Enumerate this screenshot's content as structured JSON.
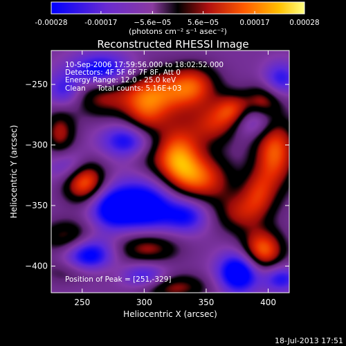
{
  "chart_data": {
    "type": "heatmap",
    "title": "Reconstructed RHESSI Image",
    "xlabel": "Heliocentric X (arcsec)",
    "ylabel": "Heliocentric Y (arcsec)",
    "xlim": [
      225,
      417
    ],
    "ylim": [
      -422,
      -222
    ],
    "x_ticks": [
      250,
      300,
      350,
      400
    ],
    "y_ticks": [
      -250,
      -300,
      -350,
      -400
    ],
    "colorbar": {
      "range": [
        -0.00028,
        0.00028
      ],
      "tick_values": [
        -0.00028,
        -0.00017,
        -5.6e-05,
        5.6e-05,
        0.00017,
        0.00028
      ],
      "tick_labels": [
        "-0.00028",
        "-0.00017",
        "−5.6e−05",
        "5.6e−05",
        "0.00017",
        "0.00028"
      ],
      "unit_label": "(photons cm⁻² s⁻¹ asec⁻²)",
      "colors": [
        "#0000ff",
        "#6a2bd0",
        "#8a3aa0",
        "#000000",
        "#b01010",
        "#ff5a00",
        "#ffc000",
        "#ffff80"
      ]
    },
    "annotations": [
      "10-Sep-2006 17:59:56.000 to 18:02:52.000",
      "Detectors: 4F 5F 6F 7F 8F, Att 0",
      "Energy Range: 12.0 - 25.0 keV",
      "Clean     Total counts: 5.16E+03"
    ],
    "peak_label": "Position of Peak = [251,-329]",
    "peak": [
      251,
      -329
    ],
    "sources": [
      {
        "x": 251,
        "y": -329,
        "sx": 12,
        "sy": 12,
        "a": 1.0
      },
      {
        "x": 232,
        "y": -290,
        "sx": 9,
        "sy": 14,
        "a": 0.55
      },
      {
        "x": 310,
        "y": -258,
        "sx": 22,
        "sy": 14,
        "a": 0.75
      },
      {
        "x": 340,
        "y": -250,
        "sx": 14,
        "sy": 12,
        "a": 0.6
      },
      {
        "x": 373,
        "y": -272,
        "sx": 11,
        "sy": 10,
        "a": 0.85
      },
      {
        "x": 326,
        "y": -308,
        "sx": 14,
        "sy": 18,
        "a": 0.9
      },
      {
        "x": 345,
        "y": -328,
        "sx": 18,
        "sy": 14,
        "a": 0.75
      },
      {
        "x": 405,
        "y": -305,
        "sx": 12,
        "sy": 22,
        "a": 0.85
      },
      {
        "x": 395,
        "y": -265,
        "sx": 10,
        "sy": 10,
        "a": 0.55
      },
      {
        "x": 395,
        "y": -387,
        "sx": 12,
        "sy": 12,
        "a": 0.9
      },
      {
        "x": 302,
        "y": -384,
        "sx": 18,
        "sy": 10,
        "a": 0.6
      },
      {
        "x": 240,
        "y": -376,
        "sx": 16,
        "sy": 10,
        "a": 0.55
      },
      {
        "x": 322,
        "y": -417,
        "sx": 20,
        "sy": 8,
        "a": 0.55
      },
      {
        "x": 376,
        "y": -356,
        "sx": 14,
        "sy": 12,
        "a": 0.5
      },
      {
        "x": 250,
        "y": -404,
        "sx": 20,
        "sy": 8,
        "a": 0.45
      },
      {
        "x": 356,
        "y": -283,
        "sx": 14,
        "sy": 12,
        "a": 0.55
      },
      {
        "x": 264,
        "y": -260,
        "sx": 16,
        "sy": 12,
        "a": 0.45
      },
      {
        "x": 392,
        "y": -340,
        "sx": 10,
        "sy": 14,
        "a": 0.5
      },
      {
        "x": 300,
        "y": -286,
        "sx": 12,
        "sy": 20,
        "a": 0.55
      },
      {
        "x": 265,
        "y": -238,
        "sx": 18,
        "sy": 10,
        "a": -0.75
      },
      {
        "x": 290,
        "y": -296,
        "sx": 16,
        "sy": 10,
        "a": -0.85
      },
      {
        "x": 386,
        "y": -278,
        "sx": 14,
        "sy": 10,
        "a": -0.7
      },
      {
        "x": 240,
        "y": -318,
        "sx": 12,
        "sy": 10,
        "a": -0.55
      },
      {
        "x": 255,
        "y": -392,
        "sx": 14,
        "sy": 12,
        "a": -0.95
      },
      {
        "x": 300,
        "y": -350,
        "sx": 20,
        "sy": 16,
        "a": -0.95
      },
      {
        "x": 335,
        "y": -358,
        "sx": 12,
        "sy": 10,
        "a": -0.55
      },
      {
        "x": 376,
        "y": -405,
        "sx": 12,
        "sy": 12,
        "a": -1.0
      },
      {
        "x": 300,
        "y": -408,
        "sx": 14,
        "sy": 8,
        "a": -0.6
      },
      {
        "x": 410,
        "y": -410,
        "sx": 10,
        "sy": 8,
        "a": -0.6
      },
      {
        "x": 410,
        "y": -245,
        "sx": 10,
        "sy": 10,
        "a": -0.55
      },
      {
        "x": 272,
        "y": -352,
        "sx": 12,
        "sy": 12,
        "a": -0.6
      },
      {
        "x": 235,
        "y": -255,
        "sx": 10,
        "sy": 10,
        "a": -0.5
      }
    ]
  },
  "footer": {
    "date": "18-Jul-2013 17:51"
  }
}
